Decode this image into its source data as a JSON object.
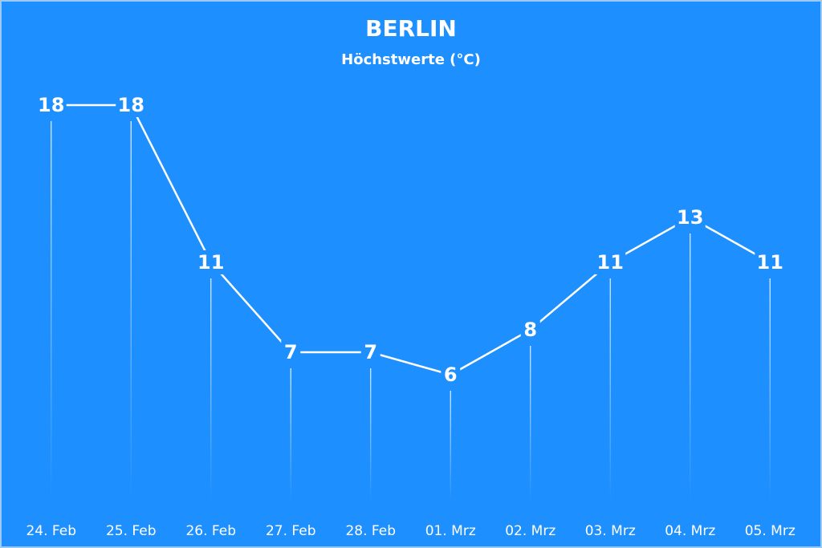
{
  "chart_data": {
    "type": "line",
    "title": "BERLIN",
    "subtitle": "Höchstwerte (°C)",
    "categories": [
      "24. Feb",
      "25. Feb",
      "26. Feb",
      "27. Feb",
      "28. Feb",
      "01. Mrz",
      "02. Mrz",
      "03. Mrz",
      "04. Mrz",
      "05. Mrz"
    ],
    "values": [
      18,
      18,
      11,
      7,
      7,
      6,
      8,
      11,
      13,
      11
    ],
    "color": "#ffffff",
    "ylim": [
      0,
      18
    ]
  }
}
